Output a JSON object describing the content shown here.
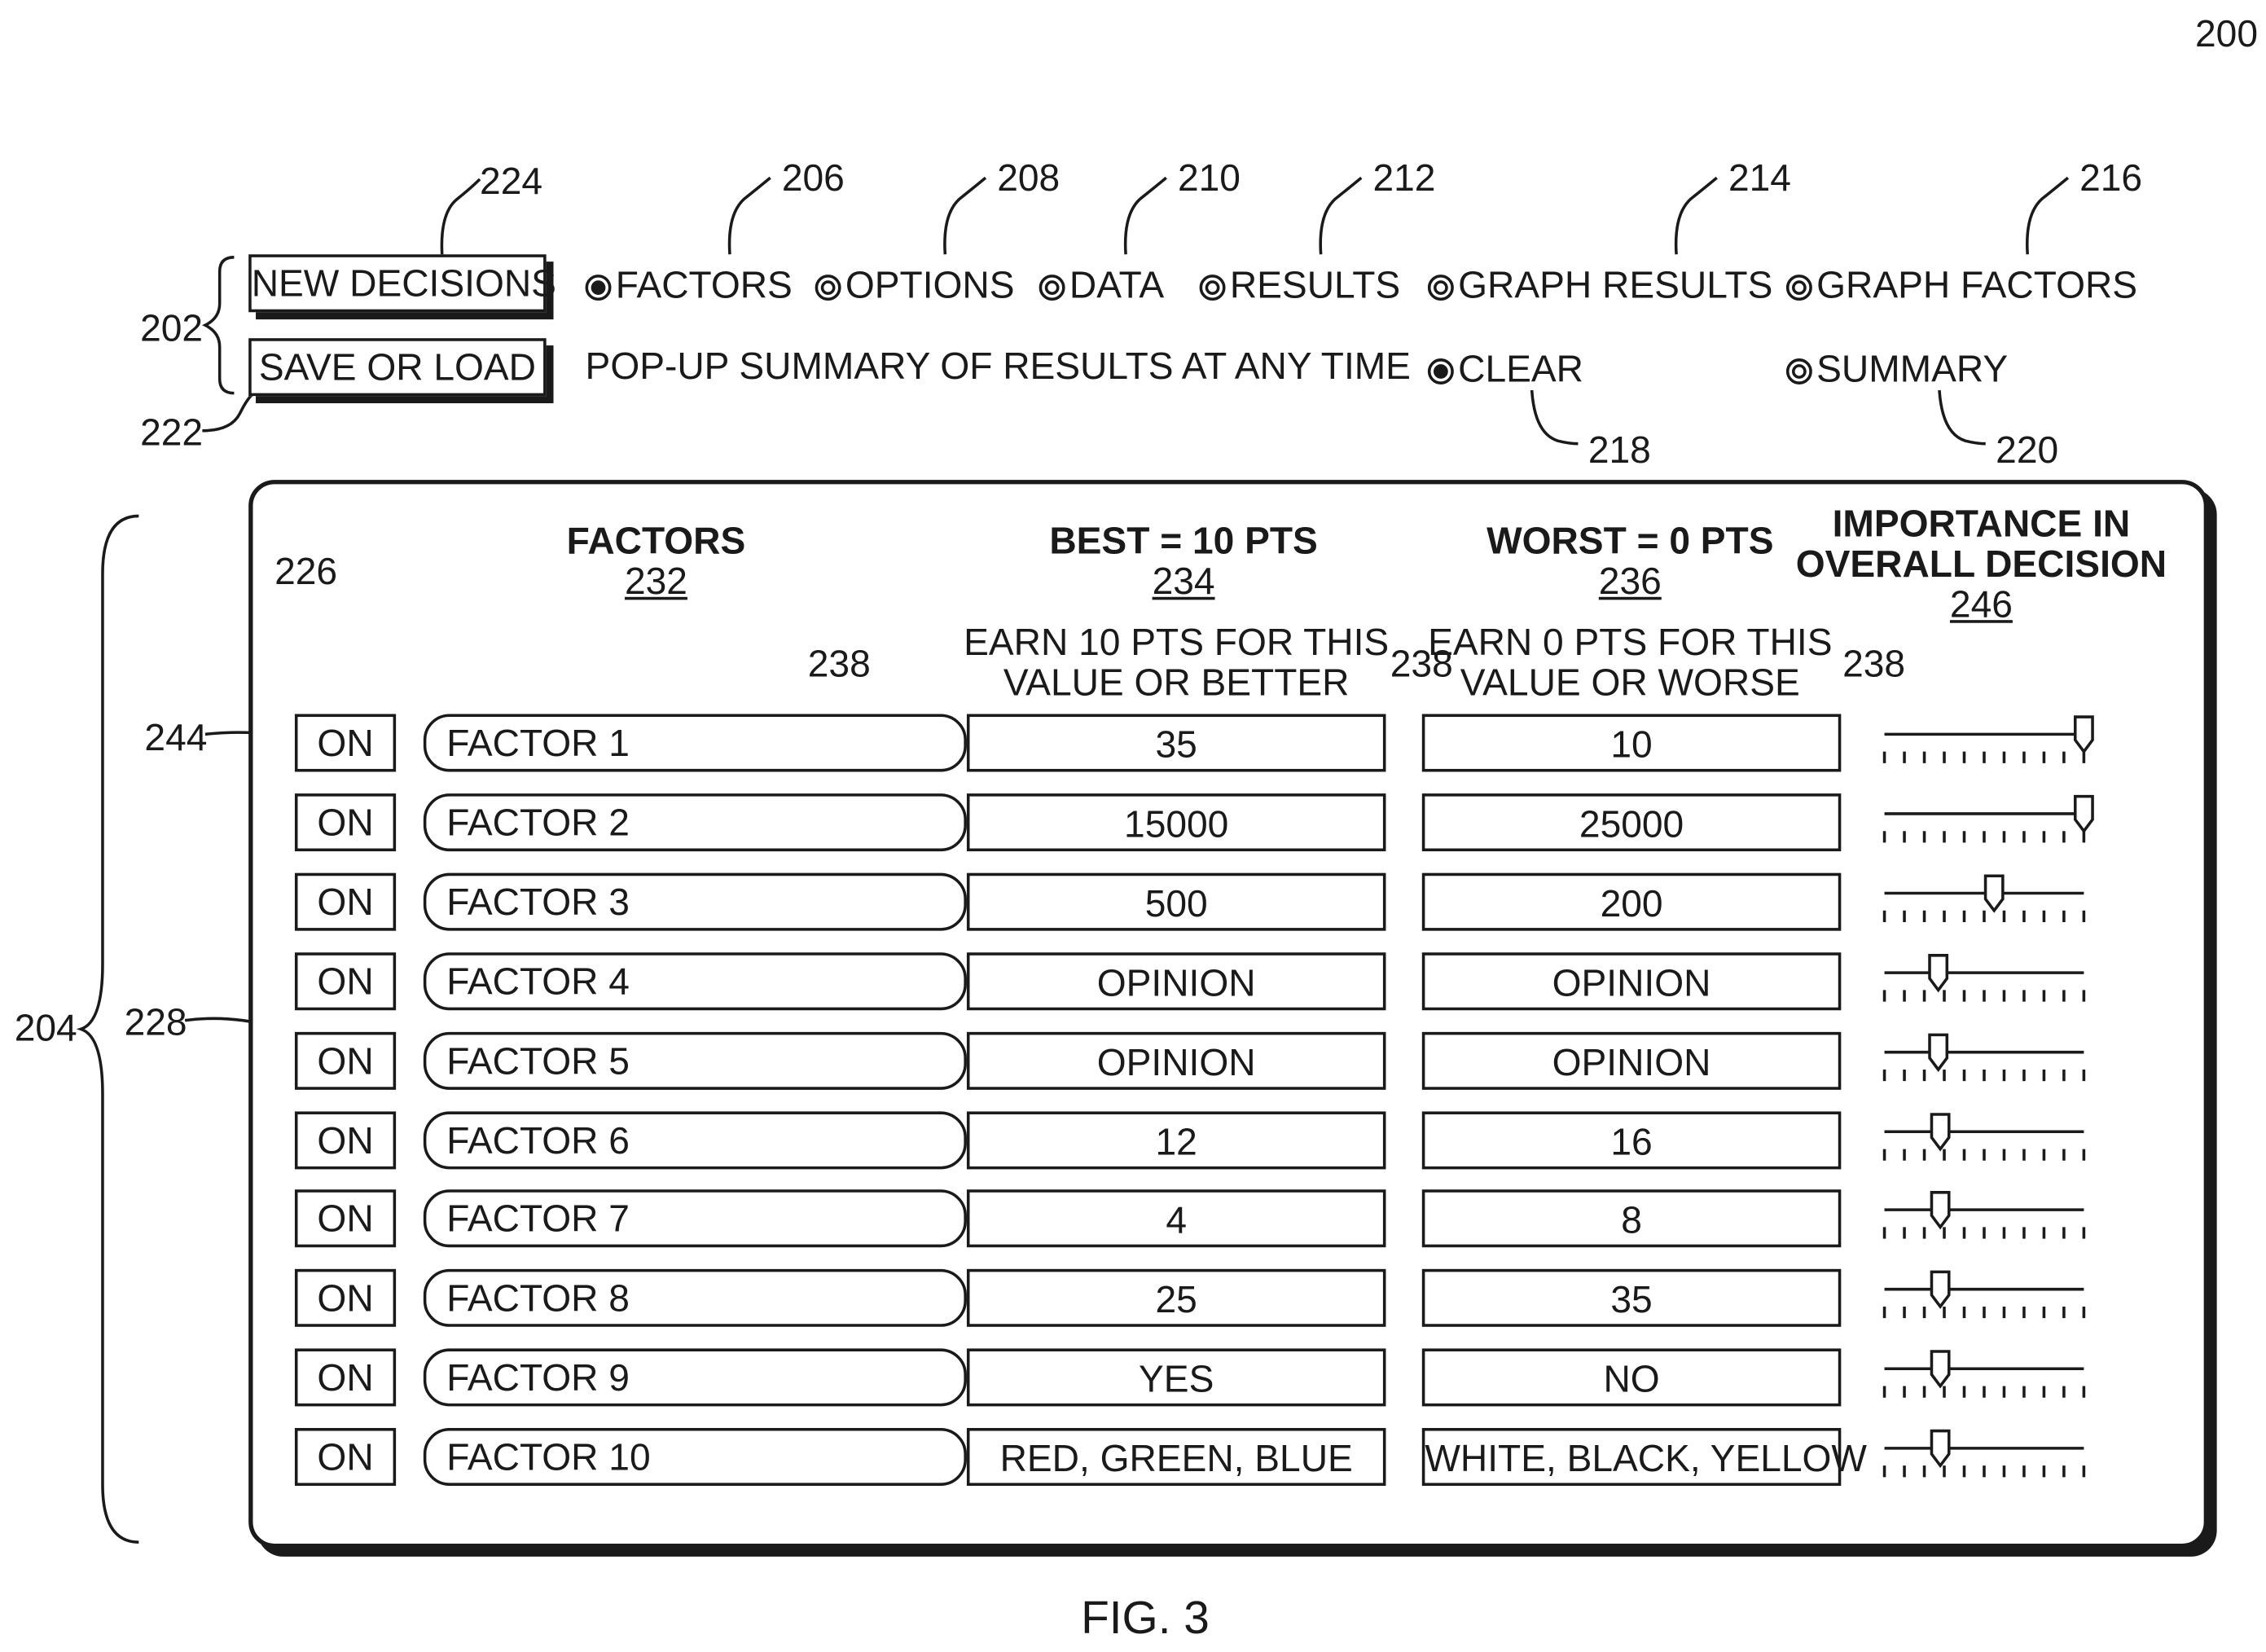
{
  "figure_ref": "200",
  "figure_caption": "FIG. 3",
  "toolbar": {
    "buttons": [
      {
        "label": "NEW DECISIONS",
        "ref": "224"
      },
      {
        "label": "SAVE OR LOAD",
        "ref": "222"
      }
    ],
    "group_refs": {
      "buttons_group": "202",
      "panel_group": "204"
    },
    "radios": [
      {
        "label": "FACTORS",
        "ref": "206",
        "selected": true
      },
      {
        "label": "OPTIONS",
        "ref": "208",
        "selected": false
      },
      {
        "label": "DATA",
        "ref": "210",
        "selected": false
      },
      {
        "label": "RESULTS",
        "ref": "212",
        "selected": false
      },
      {
        "label": "GRAPH RESULTS",
        "ref": "214",
        "selected": false
      },
      {
        "label": "GRAPH FACTORS",
        "ref": "216",
        "selected": false
      }
    ],
    "popup_text": "POP-UP SUMMARY OF RESULTS AT ANY TIME",
    "popup_radios": [
      {
        "label": "CLEAR",
        "ref": "218",
        "selected": true
      },
      {
        "label": "SUMMARY",
        "ref": "220",
        "selected": false
      }
    ]
  },
  "panel": {
    "columns": {
      "factors": {
        "title": "FACTORS",
        "ref": "232"
      },
      "best": {
        "title": "BEST = 10 PTS",
        "ref": "234",
        "note_line1": "EARN 10 PTS FOR THIS",
        "note_line2": "VALUE OR BETTER"
      },
      "worst": {
        "title": "WORST = 0 PTS",
        "ref": "236",
        "note_line1": "EARN 0 PTS FOR THIS",
        "note_line2": "VALUE OR WORSE"
      },
      "importance": {
        "title_line1": "IMPORTANCE IN",
        "title_line2": "OVERALL DECISION",
        "ref": "246"
      }
    },
    "callouts": {
      "rows_ref": "226",
      "row_group_ref": "228",
      "onoff_ref": "244",
      "field_ref": "238"
    },
    "rows": [
      {
        "toggle": "ON",
        "factor": "FACTOR 1",
        "best": "35",
        "worst": "10",
        "importance": 1.0
      },
      {
        "toggle": "ON",
        "factor": "FACTOR 2",
        "best": "15000",
        "worst": "25000",
        "importance": 1.0
      },
      {
        "toggle": "ON",
        "factor": "FACTOR 3",
        "best": "500",
        "worst": "200",
        "importance": 0.55
      },
      {
        "toggle": "ON",
        "factor": "FACTOR 4",
        "best": "OPINION",
        "worst": "OPINION",
        "importance": 0.27
      },
      {
        "toggle": "ON",
        "factor": "FACTOR 5",
        "best": "OPINION",
        "worst": "OPINION",
        "importance": 0.27
      },
      {
        "toggle": "ON",
        "factor": "FACTOR 6",
        "best": "12",
        "worst": "16",
        "importance": 0.28
      },
      {
        "toggle": "ON",
        "factor": "FACTOR 7",
        "best": "4",
        "worst": "8",
        "importance": 0.28
      },
      {
        "toggle": "ON",
        "factor": "FACTOR 8",
        "best": "25",
        "worst": "35",
        "importance": 0.28
      },
      {
        "toggle": "ON",
        "factor": "FACTOR 9",
        "best": "YES",
        "worst": "NO",
        "importance": 0.28
      },
      {
        "toggle": "ON",
        "factor": "FACTOR 10",
        "best": "RED, GREEN, BLUE",
        "worst": "WHITE, BLACK, YELLOW",
        "importance": 0.28
      }
    ]
  }
}
